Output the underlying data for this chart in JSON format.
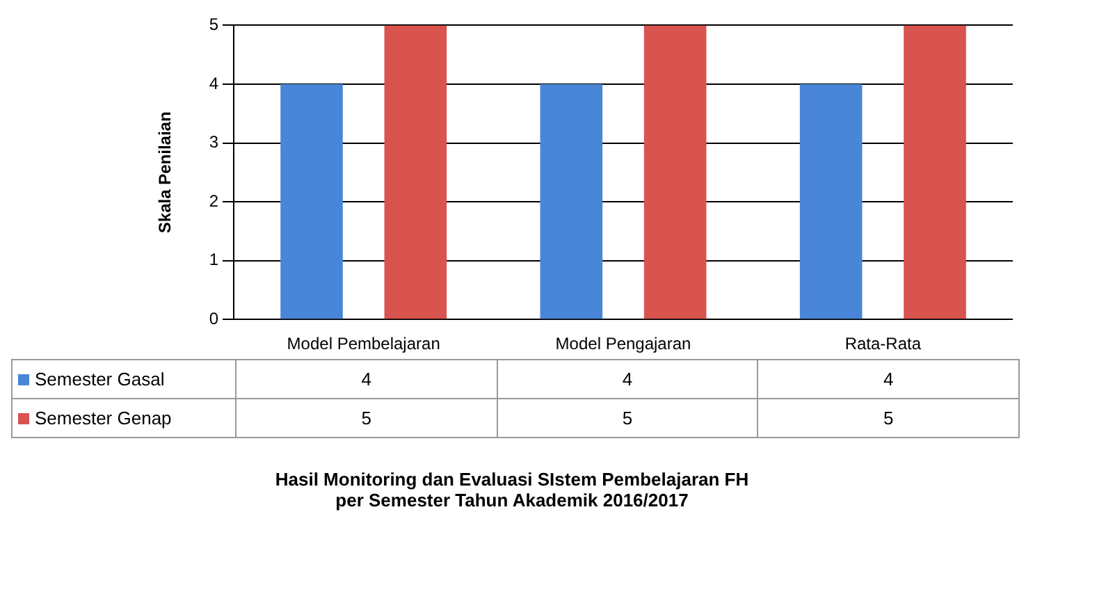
{
  "chart_data": {
    "type": "bar",
    "title": "Hasil Monitoring dan Evaluasi SIstem Pembelajaran FH",
    "subtitle": "per Semester Tahun Akademik 2016/2017",
    "ylabel": "Skala Penilaian",
    "categories": [
      "Model Pembelajaran",
      "Model Pengajaran",
      "Rata-Rata"
    ],
    "series": [
      {
        "name": "Semester Gasal",
        "color": "#4a86d8",
        "values": [
          4,
          4,
          4
        ]
      },
      {
        "name": "Semester Genap",
        "color": "#d9534f",
        "values": [
          5,
          5,
          5
        ]
      }
    ],
    "ylim": [
      0,
      5
    ],
    "yticks": [
      0,
      1,
      2,
      3,
      4,
      5
    ],
    "grid": "y",
    "legend": "bottom",
    "data_labels": true
  }
}
